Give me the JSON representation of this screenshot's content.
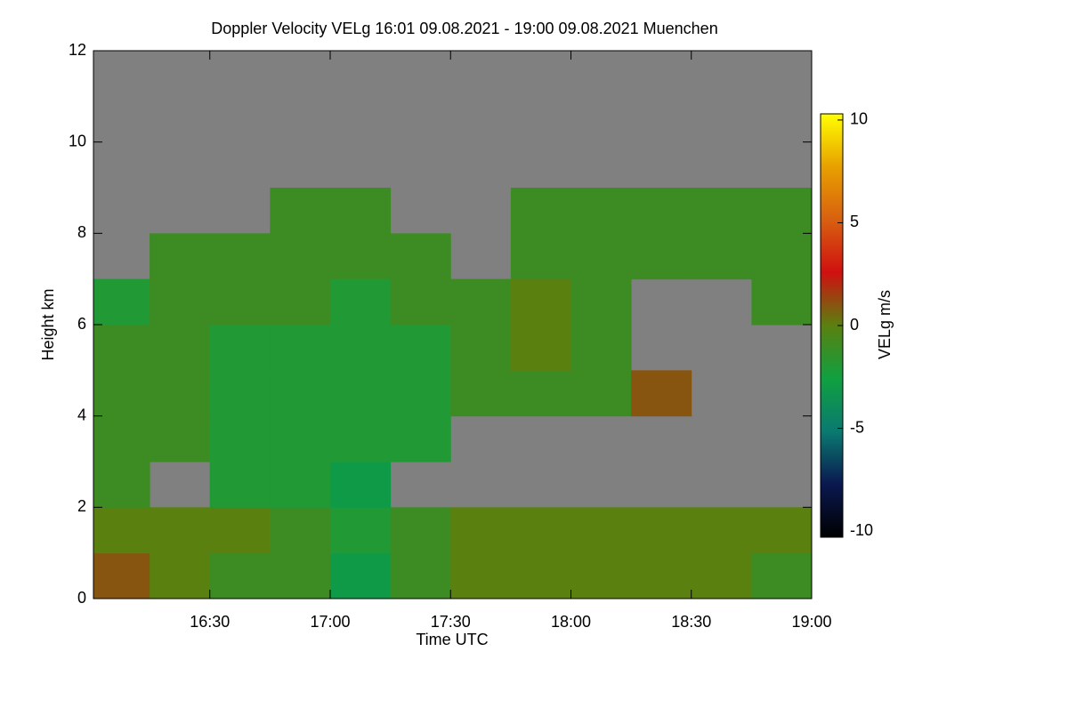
{
  "chart_data": {
    "type": "heatmap",
    "title": "Doppler Velocity VELg   16:01 09.08.2021 - 19:00 09.08.2021 Muenchen",
    "xlabel": "Time UTC",
    "ylabel": "Height km",
    "colorbar_label": "VELg m/s",
    "x_bins": [
      16.0167,
      16.25,
      16.5,
      16.75,
      17.0,
      17.25,
      17.5,
      17.75,
      18.0,
      18.25,
      18.5,
      18.75,
      19.0
    ],
    "y_bins": [
      0,
      1,
      2,
      3,
      4,
      5,
      6,
      7,
      8,
      9,
      10,
      11,
      12
    ],
    "values": [
      [
        1,
        0,
        -1,
        -1,
        -3,
        -1,
        0,
        0,
        0,
        0,
        0,
        -1
      ],
      [
        0,
        0,
        0,
        -1,
        -2,
        -1,
        0,
        0,
        0,
        0,
        0,
        0
      ],
      [
        -1,
        null,
        -2,
        -2,
        -3,
        null,
        null,
        null,
        null,
        null,
        null,
        null
      ],
      [
        -1,
        -1,
        -2,
        -2,
        -2,
        -2,
        null,
        null,
        null,
        null,
        null,
        null
      ],
      [
        -1,
        -1,
        -2,
        -2,
        -2,
        -2,
        -1,
        -1,
        -1,
        1,
        null,
        null
      ],
      [
        -1,
        -1,
        -2,
        -2,
        -2,
        -2,
        -1,
        0,
        -1,
        null,
        null,
        null
      ],
      [
        -2,
        -1,
        -1,
        -1,
        -2,
        -1,
        -1,
        0,
        -1,
        null,
        null,
        -1
      ],
      [
        null,
        -1,
        -1,
        -1,
        -1,
        -1,
        null,
        -1,
        -1,
        -1,
        -1,
        -1
      ],
      [
        null,
        null,
        null,
        -1,
        -1,
        null,
        null,
        -1,
        -1,
        -1,
        -1,
        -1
      ],
      [
        null,
        null,
        null,
        null,
        null,
        null,
        null,
        null,
        null,
        null,
        null,
        null
      ],
      [
        null,
        null,
        null,
        null,
        null,
        null,
        null,
        null,
        null,
        null,
        null,
        null
      ],
      [
        null,
        null,
        null,
        null,
        null,
        null,
        null,
        null,
        null,
        null,
        null,
        null
      ]
    ],
    "xlim": [
      16.0167,
      19.0
    ],
    "xticks": [
      {
        "value": 16.5,
        "label": "16:30"
      },
      {
        "value": 17.0,
        "label": "17:00"
      },
      {
        "value": 17.5,
        "label": "17:30"
      },
      {
        "value": 18.0,
        "label": "18:00"
      },
      {
        "value": 18.5,
        "label": "18:30"
      },
      {
        "value": 19.0,
        "label": "19:00"
      }
    ],
    "ylim": [
      0,
      12
    ],
    "yticks": [
      0,
      2,
      4,
      6,
      8,
      10,
      12
    ],
    "zlim": [
      -10.3,
      10.3
    ],
    "zticks": [
      -10,
      -5,
      0,
      5,
      10
    ],
    "colormap": [
      "#000000",
      "#0a1850",
      "#0a7a70",
      "#10a040",
      "#5a8010",
      "#d01010",
      "#d86010",
      "#e8a000",
      "#ffff00"
    ],
    "background": "#808080"
  }
}
